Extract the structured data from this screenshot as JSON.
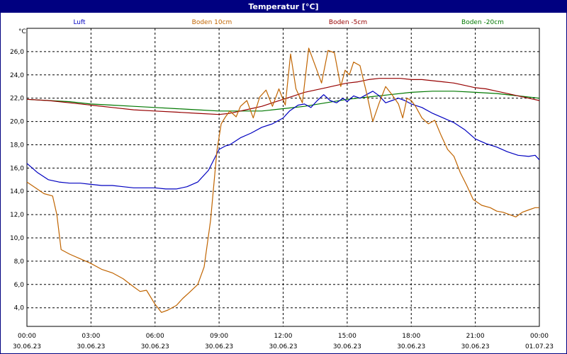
{
  "window": {
    "title": "Temperatur [°C]"
  },
  "chart_data": {
    "type": "line",
    "title": "Temperatur [°C]",
    "ylabel": "°C",
    "xlabel": "",
    "xlim": [
      "2023-06-30 00:00",
      "2023-07-01 00:00"
    ],
    "ylim": [
      2.4,
      28.0
    ],
    "grid": true,
    "x_ticks": [
      {
        "time": "00:00",
        "date": "30.06.23"
      },
      {
        "time": "03:00",
        "date": "30.06.23"
      },
      {
        "time": "06:00",
        "date": "30.06.23"
      },
      {
        "time": "09:00",
        "date": "30.06.23"
      },
      {
        "time": "12:00",
        "date": "30.06.23"
      },
      {
        "time": "15:00",
        "date": "30.06.23"
      },
      {
        "time": "18:00",
        "date": "30.06.23"
      },
      {
        "time": "21:00",
        "date": "30.06.23"
      },
      {
        "time": "00:00",
        "date": "01.07.23"
      }
    ],
    "y_ticks": [
      "4,0",
      "6,0",
      "8,0",
      "10,0",
      "12,0",
      "14,0",
      "16,0",
      "18,0",
      "20,0",
      "22,0",
      "24,0",
      "26,0"
    ],
    "y_tick_values": [
      4,
      6,
      8,
      10,
      12,
      14,
      16,
      18,
      20,
      22,
      24,
      26
    ],
    "series": [
      {
        "name": "Luft",
        "color": "#0000c0",
        "points": [
          [
            0,
            16.4
          ],
          [
            0.5,
            15.6
          ],
          [
            1,
            15.0
          ],
          [
            1.5,
            14.8
          ],
          [
            2,
            14.7
          ],
          [
            2.5,
            14.7
          ],
          [
            3,
            14.6
          ],
          [
            3.5,
            14.5
          ],
          [
            4,
            14.5
          ],
          [
            4.5,
            14.4
          ],
          [
            5,
            14.3
          ],
          [
            5.5,
            14.3
          ],
          [
            6,
            14.3
          ],
          [
            6.5,
            14.2
          ],
          [
            7,
            14.2
          ],
          [
            7.5,
            14.4
          ],
          [
            8,
            14.8
          ],
          [
            8.5,
            15.8
          ],
          [
            9,
            17.6
          ],
          [
            9.3,
            17.9
          ],
          [
            9.5,
            18.0
          ],
          [
            10,
            18.6
          ],
          [
            10.5,
            19.0
          ],
          [
            11,
            19.5
          ],
          [
            11.5,
            19.8
          ],
          [
            12,
            20.3
          ],
          [
            12.3,
            20.9
          ],
          [
            12.7,
            21.4
          ],
          [
            13,
            21.5
          ],
          [
            13.3,
            21.2
          ],
          [
            13.6,
            21.8
          ],
          [
            13.9,
            22.3
          ],
          [
            14.2,
            21.8
          ],
          [
            14.5,
            21.6
          ],
          [
            14.8,
            22.0
          ],
          [
            15,
            21.7
          ],
          [
            15.3,
            22.2
          ],
          [
            15.6,
            22.0
          ],
          [
            15.9,
            22.3
          ],
          [
            16.2,
            22.6
          ],
          [
            16.5,
            22.2
          ],
          [
            16.8,
            21.6
          ],
          [
            17.1,
            21.8
          ],
          [
            17.4,
            22.0
          ],
          [
            17.7,
            21.8
          ],
          [
            18,
            21.5
          ],
          [
            18.5,
            21.2
          ],
          [
            19,
            20.7
          ],
          [
            19.5,
            20.3
          ],
          [
            20,
            19.9
          ],
          [
            20.5,
            19.3
          ],
          [
            21,
            18.5
          ],
          [
            21.5,
            18.1
          ],
          [
            22,
            17.8
          ],
          [
            22.5,
            17.4
          ],
          [
            23,
            17.1
          ],
          [
            23.5,
            17.0
          ],
          [
            23.8,
            17.1
          ],
          [
            24,
            16.7
          ]
        ]
      },
      {
        "name": "Boden 10cm",
        "color": "#c06400",
        "points": [
          [
            0,
            14.8
          ],
          [
            0.4,
            14.3
          ],
          [
            0.8,
            13.8
          ],
          [
            1.2,
            13.6
          ],
          [
            1.4,
            12.0
          ],
          [
            1.6,
            9.0
          ],
          [
            2,
            8.6
          ],
          [
            2.5,
            8.2
          ],
          [
            3,
            7.8
          ],
          [
            3.5,
            7.3
          ],
          [
            4,
            7.0
          ],
          [
            4.5,
            6.5
          ],
          [
            5,
            5.8
          ],
          [
            5.3,
            5.4
          ],
          [
            5.6,
            5.5
          ],
          [
            6,
            4.3
          ],
          [
            6.3,
            3.6
          ],
          [
            6.6,
            3.8
          ],
          [
            7,
            4.2
          ],
          [
            7.3,
            4.8
          ],
          [
            7.6,
            5.3
          ],
          [
            8,
            6.0
          ],
          [
            8.3,
            7.5
          ],
          [
            8.6,
            11.5
          ],
          [
            8.9,
            17.5
          ],
          [
            9.1,
            19.8
          ],
          [
            9.3,
            20.4
          ],
          [
            9.5,
            20.9
          ],
          [
            9.8,
            20.4
          ],
          [
            10,
            21.3
          ],
          [
            10.3,
            21.8
          ],
          [
            10.6,
            20.3
          ],
          [
            10.9,
            22.1
          ],
          [
            11.2,
            22.7
          ],
          [
            11.5,
            21.3
          ],
          [
            11.8,
            22.8
          ],
          [
            12.1,
            21.4
          ],
          [
            12.35,
            25.8
          ],
          [
            12.6,
            22.8
          ],
          [
            12.9,
            21.6
          ],
          [
            13.2,
            26.3
          ],
          [
            13.5,
            24.8
          ],
          [
            13.8,
            23.3
          ],
          [
            14.1,
            26.1
          ],
          [
            14.4,
            25.9
          ],
          [
            14.7,
            23.0
          ],
          [
            14.9,
            24.4
          ],
          [
            15.1,
            24.0
          ],
          [
            15.3,
            25.1
          ],
          [
            15.6,
            24.8
          ],
          [
            15.9,
            22.5
          ],
          [
            16.2,
            20.0
          ],
          [
            16.5,
            21.6
          ],
          [
            16.8,
            23.0
          ],
          [
            17.1,
            22.3
          ],
          [
            17.4,
            21.5
          ],
          [
            17.6,
            20.3
          ],
          [
            17.8,
            22.0
          ],
          [
            18.0,
            21.8
          ],
          [
            18.2,
            21.3
          ],
          [
            18.5,
            20.3
          ],
          [
            18.8,
            19.8
          ],
          [
            19.1,
            20.1
          ],
          [
            19.4,
            18.8
          ],
          [
            19.7,
            17.6
          ],
          [
            20.0,
            17.0
          ],
          [
            20.3,
            15.6
          ],
          [
            20.6,
            14.5
          ],
          [
            20.9,
            13.3
          ],
          [
            21.3,
            12.8
          ],
          [
            21.7,
            12.6
          ],
          [
            22.0,
            12.3
          ],
          [
            22.3,
            12.2
          ],
          [
            22.6,
            12.0
          ],
          [
            22.9,
            11.8
          ],
          [
            23.2,
            12.2
          ],
          [
            23.5,
            12.4
          ],
          [
            23.8,
            12.6
          ],
          [
            24,
            12.6
          ]
        ]
      },
      {
        "name": "Boden -5cm",
        "color": "#960000",
        "points": [
          [
            0,
            21.9
          ],
          [
            1,
            21.8
          ],
          [
            2,
            21.6
          ],
          [
            3,
            21.4
          ],
          [
            4,
            21.2
          ],
          [
            5,
            21.0
          ],
          [
            6,
            20.9
          ],
          [
            7,
            20.8
          ],
          [
            8,
            20.7
          ],
          [
            9,
            20.6
          ],
          [
            9.5,
            20.7
          ],
          [
            10,
            20.9
          ],
          [
            10.5,
            21.1
          ],
          [
            11,
            21.3
          ],
          [
            11.5,
            21.6
          ],
          [
            12,
            21.9
          ],
          [
            12.5,
            22.2
          ],
          [
            13,
            22.5
          ],
          [
            13.5,
            22.7
          ],
          [
            14,
            22.9
          ],
          [
            14.5,
            23.1
          ],
          [
            15,
            23.3
          ],
          [
            15.5,
            23.4
          ],
          [
            16,
            23.6
          ],
          [
            16.5,
            23.7
          ],
          [
            17,
            23.7
          ],
          [
            17.5,
            23.7
          ],
          [
            18,
            23.6
          ],
          [
            18.5,
            23.6
          ],
          [
            19,
            23.5
          ],
          [
            19.5,
            23.4
          ],
          [
            20,
            23.3
          ],
          [
            20.5,
            23.1
          ],
          [
            21,
            22.9
          ],
          [
            21.5,
            22.8
          ],
          [
            22,
            22.6
          ],
          [
            22.5,
            22.4
          ],
          [
            23,
            22.2
          ],
          [
            23.5,
            22.0
          ],
          [
            24,
            21.8
          ]
        ]
      },
      {
        "name": "Boden -20cm",
        "color": "#007800",
        "points": [
          [
            0,
            21.9
          ],
          [
            1,
            21.8
          ],
          [
            2,
            21.7
          ],
          [
            3,
            21.5
          ],
          [
            4,
            21.4
          ],
          [
            5,
            21.3
          ],
          [
            6,
            21.2
          ],
          [
            7,
            21.1
          ],
          [
            8,
            21.0
          ],
          [
            9,
            20.9
          ],
          [
            10,
            20.9
          ],
          [
            11,
            20.9
          ],
          [
            12,
            21.1
          ],
          [
            13,
            21.3
          ],
          [
            14,
            21.6
          ],
          [
            15,
            21.9
          ],
          [
            16,
            22.1
          ],
          [
            17,
            22.3
          ],
          [
            18,
            22.5
          ],
          [
            19,
            22.6
          ],
          [
            20,
            22.6
          ],
          [
            21,
            22.5
          ],
          [
            22,
            22.4
          ],
          [
            23,
            22.2
          ],
          [
            24,
            22.0
          ]
        ]
      }
    ]
  }
}
